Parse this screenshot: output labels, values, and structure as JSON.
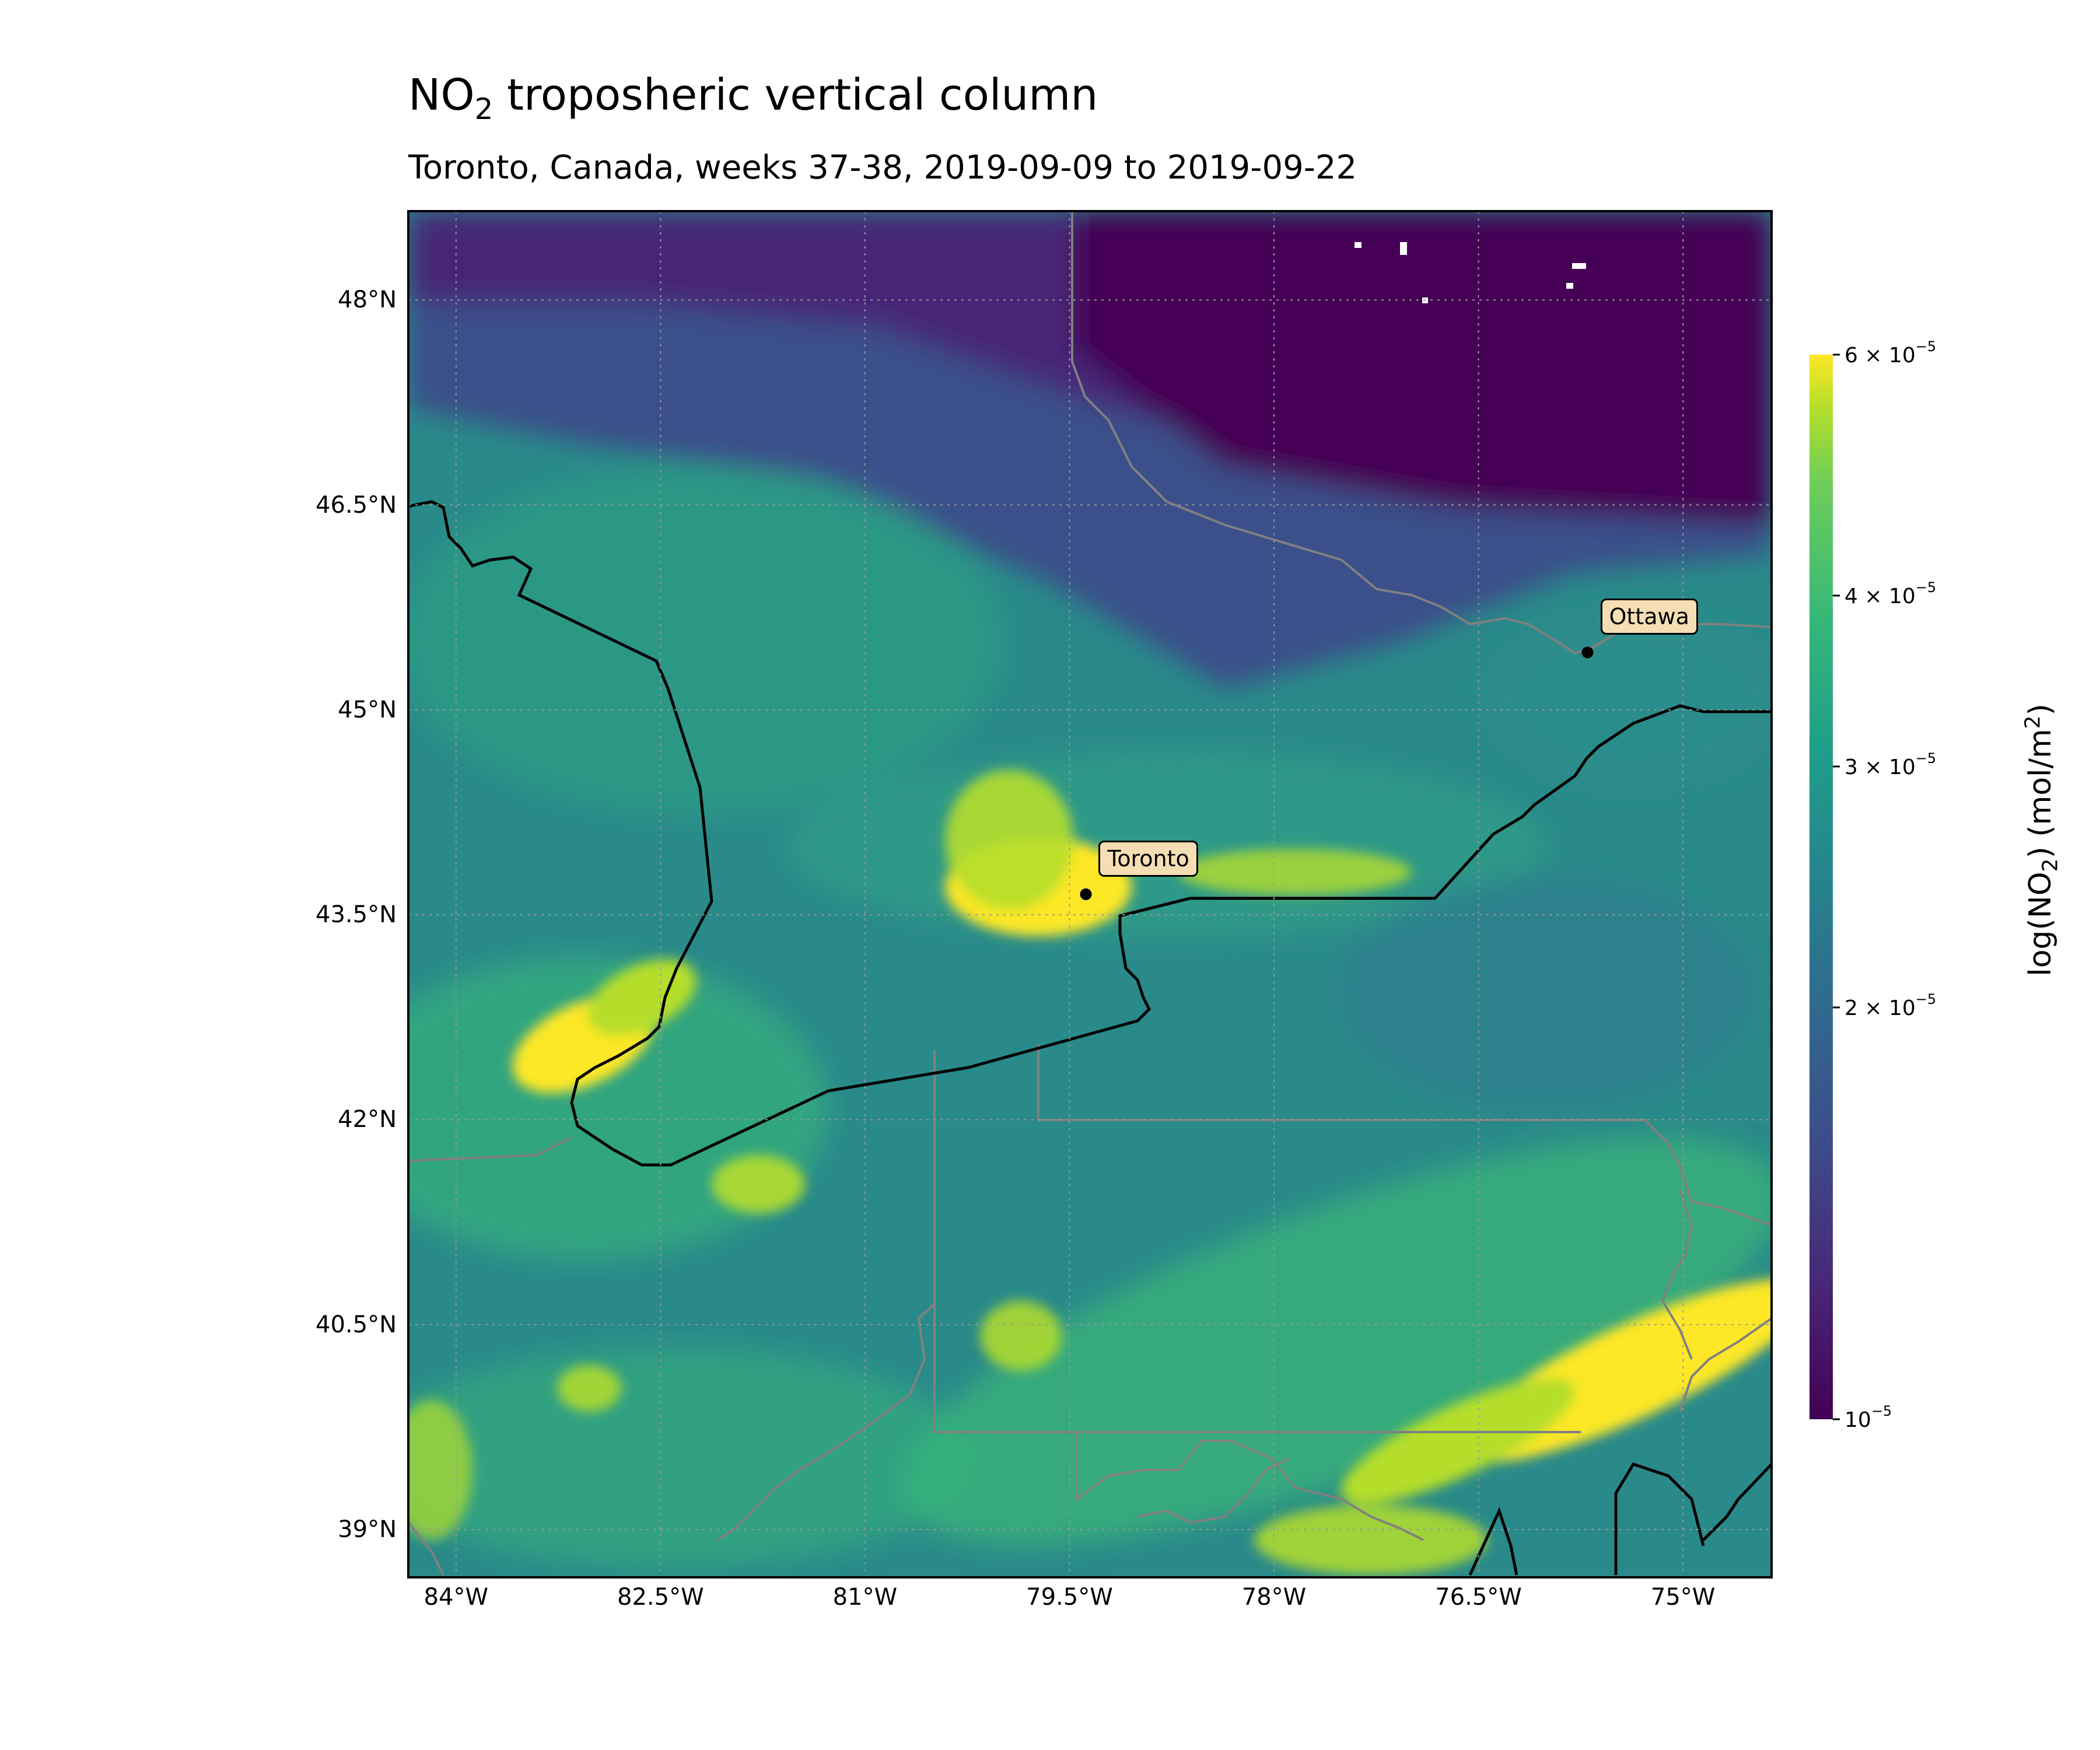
{
  "figure": {
    "title_prefix": "NO",
    "title_sub": "2",
    "title_suffix": " troposheric vertical column",
    "subtitle": "Toronto, Canada, weeks 37-38, 2019-09-09 to 2019-09-22"
  },
  "map": {
    "lon_range": [
      -84.35,
      -74.35
    ],
    "lat_range": [
      38.65,
      48.65
    ],
    "lon_ticks": [
      {
        "value": -84,
        "label": "84°W"
      },
      {
        "value": -82.5,
        "label": "82.5°W"
      },
      {
        "value": -81,
        "label": "81°W"
      },
      {
        "value": -79.5,
        "label": "79.5°W"
      },
      {
        "value": -78,
        "label": "78°W"
      },
      {
        "value": -76.5,
        "label": "76.5°W"
      },
      {
        "value": -75,
        "label": "75°W"
      }
    ],
    "lat_ticks": [
      {
        "value": 48,
        "label": "48°N"
      },
      {
        "value": 46.5,
        "label": "46.5°N"
      },
      {
        "value": 45,
        "label": "45°N"
      },
      {
        "value": 43.5,
        "label": "43.5°N"
      },
      {
        "value": 42,
        "label": "42°N"
      },
      {
        "value": 40.5,
        "label": "40.5°N"
      },
      {
        "value": 39,
        "label": "39°N"
      }
    ],
    "cities": [
      {
        "name": "Toronto",
        "lon": -79.38,
        "lat": 43.65
      },
      {
        "name": "Ottawa",
        "lon": -75.7,
        "lat": 45.42
      }
    ]
  },
  "colorbar": {
    "scale": "log",
    "range": [
      1e-05,
      6e-05
    ],
    "colormap": "viridis",
    "ticks": [
      {
        "value": 6e-05,
        "coef": "6 × 10",
        "exp": "−5"
      },
      {
        "value": 4e-05,
        "coef": "4 × 10",
        "exp": "−5"
      },
      {
        "value": 3e-05,
        "coef": "3 × 10",
        "exp": "−5"
      },
      {
        "value": 2e-05,
        "coef": "2 × 10",
        "exp": "−5"
      },
      {
        "value": 1e-05,
        "coef": "10",
        "exp": "−5"
      }
    ],
    "label_prefix": "log(NO",
    "label_sub": "2",
    "label_mid": ") (mol/m",
    "label_sup": "2",
    "label_suffix": ")"
  },
  "colors": {
    "coastline": "#000000",
    "borders": "#808080",
    "city_box": "#f5deb3"
  }
}
